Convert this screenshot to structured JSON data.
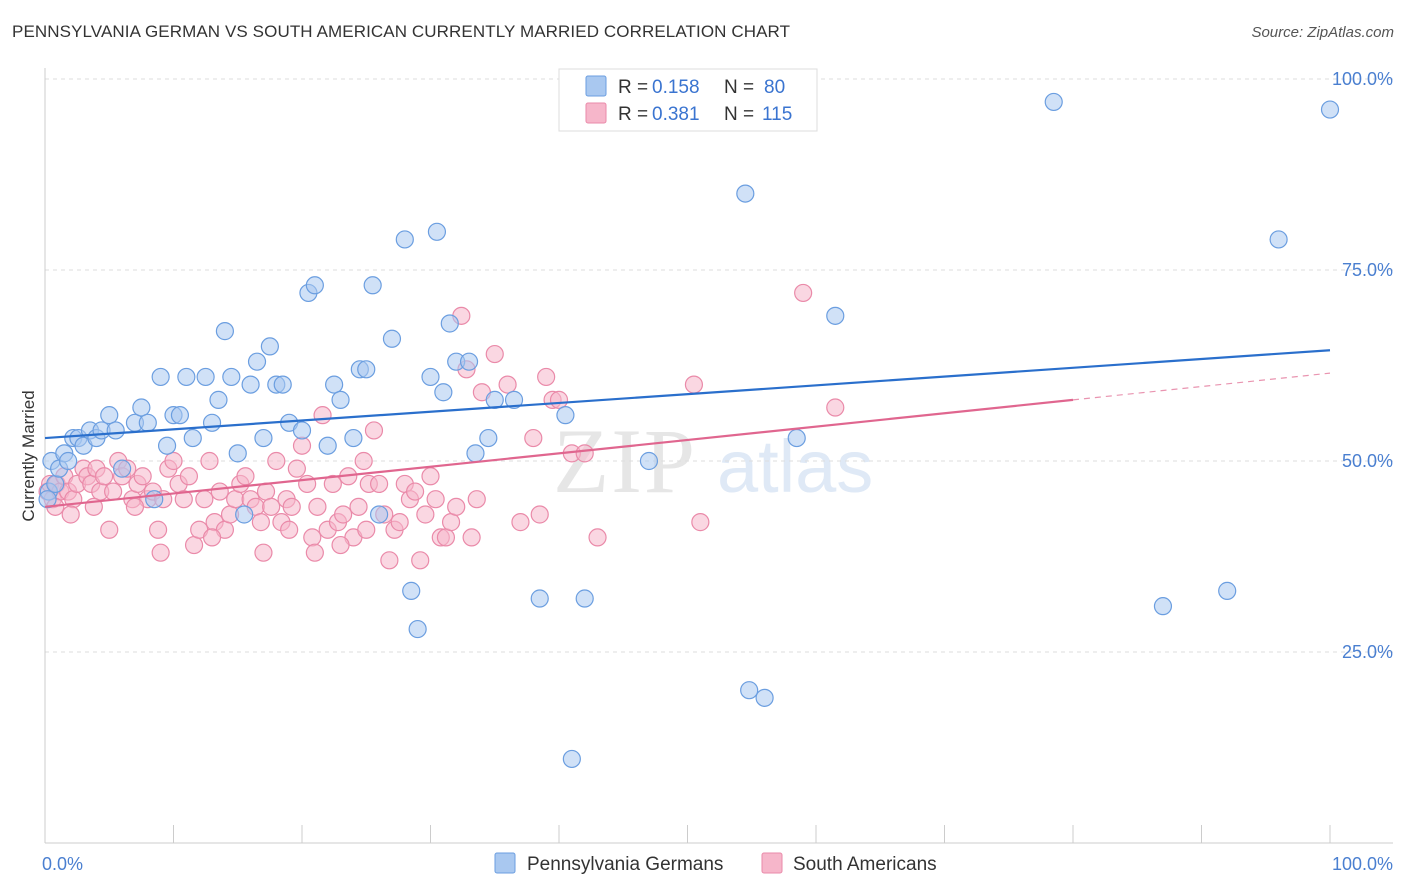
{
  "title": "PENNSYLVANIA GERMAN VS SOUTH AMERICAN CURRENTLY MARRIED CORRELATION CHART",
  "source": "Source: ZipAtlas.com",
  "watermark": {
    "zip": "ZIP",
    "atlas": "atlas"
  },
  "colors": {
    "blue_fill": "#a9c8f0",
    "blue_stroke": "#6b9ee0",
    "blue_line": "#2a6fcc",
    "pink_fill": "#f6b6ca",
    "pink_stroke": "#ea8aa9",
    "pink_line": "#e0668f",
    "grid": "#dddddd",
    "tick_text": "#4a7fd0"
  },
  "chart_data": {
    "type": "scatter",
    "title": "PENNSYLVANIA GERMAN VS SOUTH AMERICAN CURRENTLY MARRIED CORRELATION CHART",
    "ylabel": "Currently Married",
    "xlabel": "",
    "xlim": [
      0,
      100
    ],
    "ylim": [
      0,
      105
    ],
    "x_tick_labels": {
      "left": "0.0%",
      "right": "100.0%"
    },
    "y_ticks": [
      {
        "value": 25,
        "label": "25.0%"
      },
      {
        "value": 50,
        "label": "50.0%"
      },
      {
        "value": 75,
        "label": "75.0%"
      },
      {
        "value": 100,
        "label": "100.0%"
      }
    ],
    "legend": [
      {
        "r_label": "R =",
        "r_value": "0.158",
        "n_label": "N =",
        "n_value": "80"
      },
      {
        "r_label": "R =",
        "r_value": "0.381",
        "n_label": "N =",
        "n_value": "115"
      }
    ],
    "series": [
      {
        "name": "Pennsylvania Germans",
        "color": "blue",
        "trend": {
          "x0": 0,
          "y0": 53.0,
          "x1": 100,
          "y1": 64.5
        },
        "points": [
          [
            0.3,
            46
          ],
          [
            0.5,
            50
          ],
          [
            0.8,
            47
          ],
          [
            1.1,
            49
          ],
          [
            1.5,
            51
          ],
          [
            1.8,
            50
          ],
          [
            2.2,
            53
          ],
          [
            2.6,
            53
          ],
          [
            3.0,
            52
          ],
          [
            3.5,
            54
          ],
          [
            4.0,
            53
          ],
          [
            4.4,
            54
          ],
          [
            5.0,
            56
          ],
          [
            5.5,
            54
          ],
          [
            6.0,
            49
          ],
          [
            7.0,
            55
          ],
          [
            7.5,
            57
          ],
          [
            8.0,
            55
          ],
          [
            8.5,
            45
          ],
          [
            9.0,
            61
          ],
          [
            9.5,
            52
          ],
          [
            10.0,
            56
          ],
          [
            10.5,
            56
          ],
          [
            11.0,
            61
          ],
          [
            11.5,
            53
          ],
          [
            12.5,
            61
          ],
          [
            13.0,
            55
          ],
          [
            13.5,
            58
          ],
          [
            14.0,
            67
          ],
          [
            14.5,
            61
          ],
          [
            15.0,
            51
          ],
          [
            15.5,
            43
          ],
          [
            16.0,
            60
          ],
          [
            16.5,
            63
          ],
          [
            17.0,
            53
          ],
          [
            17.5,
            65
          ],
          [
            18.0,
            60
          ],
          [
            18.5,
            60
          ],
          [
            19.0,
            55
          ],
          [
            20.0,
            54
          ],
          [
            20.5,
            72
          ],
          [
            21.0,
            73
          ],
          [
            22.0,
            52
          ],
          [
            22.5,
            60
          ],
          [
            23.0,
            58
          ],
          [
            24.0,
            53
          ],
          [
            24.5,
            62
          ],
          [
            25.0,
            62
          ],
          [
            25.5,
            73
          ],
          [
            26.0,
            43
          ],
          [
            27.0,
            66
          ],
          [
            28.0,
            79
          ],
          [
            28.5,
            33
          ],
          [
            29.0,
            28
          ],
          [
            30.0,
            61
          ],
          [
            30.5,
            80
          ],
          [
            31.0,
            59
          ],
          [
            31.5,
            68
          ],
          [
            32.0,
            63
          ],
          [
            33.0,
            63
          ],
          [
            33.5,
            51
          ],
          [
            34.5,
            53
          ],
          [
            35.0,
            58
          ],
          [
            36.5,
            58
          ],
          [
            38.5,
            32
          ],
          [
            40.5,
            56
          ],
          [
            41.0,
            11
          ],
          [
            42.0,
            32
          ],
          [
            47.0,
            50
          ],
          [
            54.5,
            85
          ],
          [
            54.8,
            20
          ],
          [
            56.0,
            19
          ],
          [
            58.5,
            53
          ],
          [
            61.5,
            69
          ],
          [
            78.5,
            97
          ],
          [
            87.0,
            31
          ],
          [
            92.0,
            33
          ],
          [
            96.0,
            79
          ],
          [
            100.0,
            96
          ],
          [
            0.2,
            45
          ]
        ]
      },
      {
        "name": "South Americans",
        "color": "pink",
        "trend": {
          "x0": 0,
          "y0": 44.0,
          "x1": 80,
          "y1": 58.0,
          "ext_x1": 100,
          "ext_y1": 61.5
        },
        "points": [
          [
            0.2,
            46
          ],
          [
            0.4,
            47
          ],
          [
            0.6,
            45
          ],
          [
            0.9,
            47
          ],
          [
            1.2,
            46
          ],
          [
            1.5,
            48
          ],
          [
            1.8,
            46
          ],
          [
            2.2,
            45
          ],
          [
            2.5,
            47
          ],
          [
            3.0,
            49
          ],
          [
            3.3,
            48
          ],
          [
            3.6,
            47
          ],
          [
            4.0,
            49
          ],
          [
            4.3,
            46
          ],
          [
            4.6,
            48
          ],
          [
            5.0,
            41
          ],
          [
            5.3,
            46
          ],
          [
            5.7,
            50
          ],
          [
            6.0,
            48
          ],
          [
            6.4,
            49
          ],
          [
            6.8,
            45
          ],
          [
            7.2,
            47
          ],
          [
            7.6,
            48
          ],
          [
            8.0,
            45
          ],
          [
            8.4,
            46
          ],
          [
            8.8,
            41
          ],
          [
            9.2,
            45
          ],
          [
            9.6,
            49
          ],
          [
            10.0,
            50
          ],
          [
            10.4,
            47
          ],
          [
            10.8,
            45
          ],
          [
            11.2,
            48
          ],
          [
            11.6,
            39
          ],
          [
            12.0,
            41
          ],
          [
            12.4,
            45
          ],
          [
            12.8,
            50
          ],
          [
            13.2,
            42
          ],
          [
            13.6,
            46
          ],
          [
            14.0,
            41
          ],
          [
            14.4,
            43
          ],
          [
            14.8,
            45
          ],
          [
            15.2,
            47
          ],
          [
            15.6,
            48
          ],
          [
            16.0,
            45
          ],
          [
            16.4,
            44
          ],
          [
            16.8,
            42
          ],
          [
            17.2,
            46
          ],
          [
            17.6,
            44
          ],
          [
            18.0,
            50
          ],
          [
            18.4,
            42
          ],
          [
            18.8,
            45
          ],
          [
            19.2,
            44
          ],
          [
            19.6,
            49
          ],
          [
            20.0,
            52
          ],
          [
            20.4,
            47
          ],
          [
            20.8,
            40
          ],
          [
            21.2,
            44
          ],
          [
            21.6,
            56
          ],
          [
            22.0,
            41
          ],
          [
            22.4,
            47
          ],
          [
            22.8,
            42
          ],
          [
            23.2,
            43
          ],
          [
            23.6,
            48
          ],
          [
            24.0,
            40
          ],
          [
            24.4,
            44
          ],
          [
            24.8,
            50
          ],
          [
            25.2,
            47
          ],
          [
            25.6,
            54
          ],
          [
            26.0,
            47
          ],
          [
            26.4,
            43
          ],
          [
            26.8,
            37
          ],
          [
            27.2,
            41
          ],
          [
            27.6,
            42
          ],
          [
            28.0,
            47
          ],
          [
            28.4,
            45
          ],
          [
            28.8,
            46
          ],
          [
            29.2,
            37
          ],
          [
            29.6,
            43
          ],
          [
            30.0,
            48
          ],
          [
            30.4,
            45
          ],
          [
            30.8,
            40
          ],
          [
            31.2,
            40
          ],
          [
            31.6,
            42
          ],
          [
            32.0,
            44
          ],
          [
            32.4,
            69
          ],
          [
            32.8,
            62
          ],
          [
            33.2,
            40
          ],
          [
            33.6,
            45
          ],
          [
            34.0,
            59
          ],
          [
            35.0,
            64
          ],
          [
            36.0,
            60
          ],
          [
            37.0,
            42
          ],
          [
            38.0,
            53
          ],
          [
            38.5,
            43
          ],
          [
            39.0,
            61
          ],
          [
            39.5,
            58
          ],
          [
            40.0,
            58
          ],
          [
            41.0,
            51
          ],
          [
            42.0,
            51
          ],
          [
            43.0,
            40
          ],
          [
            50.5,
            60
          ],
          [
            51.0,
            42
          ],
          [
            59.0,
            72
          ],
          [
            61.5,
            57
          ],
          [
            0.8,
            44
          ],
          [
            2.0,
            43
          ],
          [
            3.8,
            44
          ],
          [
            7.0,
            44
          ],
          [
            9.0,
            38
          ],
          [
            13.0,
            40
          ],
          [
            17.0,
            38
          ],
          [
            19.0,
            41
          ],
          [
            21.0,
            38
          ],
          [
            23.0,
            39
          ],
          [
            25.0,
            41
          ]
        ]
      }
    ]
  },
  "bottom_legend": [
    {
      "label": "Pennsylvania Germans",
      "color": "blue"
    },
    {
      "label": "South Americans",
      "color": "pink"
    }
  ]
}
